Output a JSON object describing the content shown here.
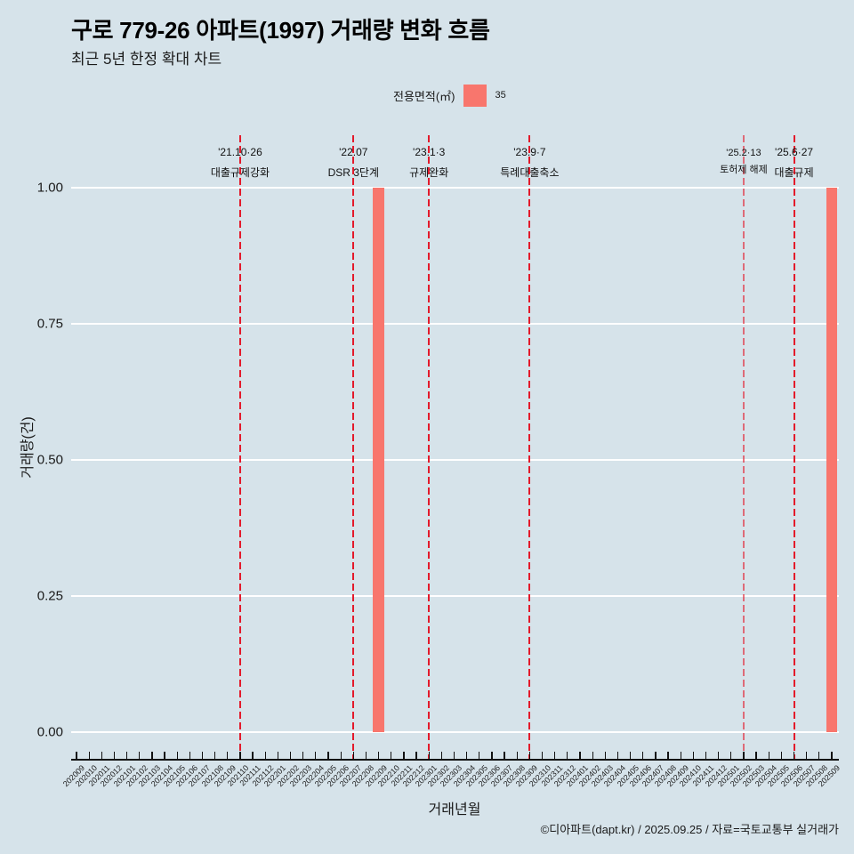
{
  "header": {
    "title": "구로 779-26 아파트(1997) 거래량 변화 흐름",
    "subtitle": "최근 5년 한정 확대 차트"
  },
  "legend": {
    "title": "전용면적(㎡)",
    "items": [
      {
        "label": "35",
        "color": "#f8766d"
      }
    ]
  },
  "axes": {
    "x_title": "거래년월",
    "y_title": "거래량(건)"
  },
  "caption": "©디아파트(dapt.kr) / 2025.09.25 / 자료=국토교통부 실거래가",
  "chart_data": {
    "type": "bar",
    "title": "구로 779-26 아파트(1997) 거래량 변화 흐름",
    "subtitle": "최근 5년 한정 확대 차트",
    "xlabel": "거래년월",
    "ylabel": "거래량(건)",
    "ylim": [
      0,
      1
    ],
    "grid": true,
    "legend_position": "top",
    "legend_title": "전용면적(㎡)",
    "yticks": [
      0,
      0.25,
      0.5,
      0.75,
      1
    ],
    "ytick_labels": [
      "0.00",
      "0.25",
      "0.50",
      "0.75",
      "1.00"
    ],
    "categories": [
      "202009",
      "202010",
      "202011",
      "202012",
      "202101",
      "202102",
      "202103",
      "202104",
      "202105",
      "202106",
      "202107",
      "202108",
      "202109",
      "202110",
      "202111",
      "202112",
      "202201",
      "202202",
      "202203",
      "202204",
      "202205",
      "202206",
      "202207",
      "202208",
      "202209",
      "202210",
      "202211",
      "202212",
      "202301",
      "202302",
      "202303",
      "202304",
      "202305",
      "202306",
      "202307",
      "202308",
      "202309",
      "202310",
      "202311",
      "202312",
      "202401",
      "202402",
      "202403",
      "202404",
      "202405",
      "202406",
      "202407",
      "202408",
      "202409",
      "202410",
      "202411",
      "202412",
      "202501",
      "202502",
      "202503",
      "202504",
      "202505",
      "202506",
      "202507",
      "202508",
      "202509"
    ],
    "series": [
      {
        "name": "35",
        "color": "#f8766d",
        "values": [
          0,
          0,
          0,
          0,
          0,
          0,
          0,
          0,
          0,
          0,
          0,
          0,
          0,
          0,
          0,
          0,
          0,
          0,
          0,
          0,
          0,
          0,
          0,
          0,
          1,
          0,
          0,
          0,
          0,
          0,
          0,
          0,
          0,
          0,
          0,
          0,
          0,
          0,
          0,
          0,
          0,
          0,
          0,
          0,
          0,
          0,
          0,
          0,
          0,
          0,
          0,
          0,
          0,
          0,
          0,
          0,
          0,
          0,
          0,
          0,
          1
        ]
      }
    ],
    "annotations": [
      {
        "x": "202110",
        "date": "'21.10·26",
        "label": "대출규제강화",
        "emphasis": "normal"
      },
      {
        "x": "202207",
        "date": "'22.07",
        "label": "DSR 3단계",
        "emphasis": "normal"
      },
      {
        "x": "202301",
        "date": "'23.1·3",
        "label": "규제완화",
        "emphasis": "normal"
      },
      {
        "x": "202309",
        "date": "'23.9·7",
        "label": "특례대출축소",
        "emphasis": "normal"
      },
      {
        "x": "202502",
        "date": "'25.2·13",
        "label": "토허제 해제",
        "emphasis": "light"
      },
      {
        "x": "202506",
        "date": "'25.6·27",
        "label": "대출규제",
        "emphasis": "normal"
      }
    ],
    "event_line_color": "#e31a2b"
  }
}
